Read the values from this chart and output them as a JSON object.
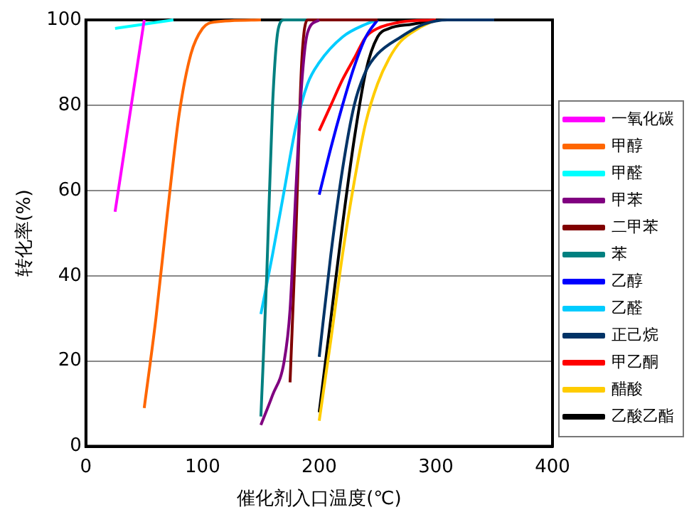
{
  "chart_data": {
    "type": "line",
    "xlabel": "催化剂入口温度(℃)",
    "ylabel": "转化率(%)",
    "xlim": [
      0,
      400
    ],
    "xticks": [
      0,
      100,
      200,
      300,
      400
    ],
    "ylim": [
      0,
      100
    ],
    "yticks": [
      0,
      20,
      40,
      60,
      80,
      100
    ],
    "grid": "y",
    "legend": "right",
    "marker": "none",
    "line_style": "solid",
    "series": [
      {
        "name": "一氧化碳",
        "color": "#ff00ff",
        "x": [
          25,
          50
        ],
        "values": [
          55,
          100
        ]
      },
      {
        "name": "甲醇",
        "color": "#ff6600",
        "x": [
          50,
          60,
          70,
          80,
          90,
          100,
          110,
          150
        ],
        "values": [
          9,
          30,
          55,
          78,
          92,
          98,
          99.5,
          100
        ]
      },
      {
        "name": "甲醛",
        "color": "#00ffff",
        "x": [
          25,
          50,
          75
        ],
        "values": [
          98,
          99,
          100
        ]
      },
      {
        "name": "甲苯",
        "color": "#800080",
        "x": [
          150,
          160,
          170,
          175,
          180,
          185,
          190,
          200
        ],
        "values": [
          5,
          12,
          20,
          32,
          60,
          85,
          97,
          100
        ]
      },
      {
        "name": "二甲苯",
        "color": "#800000",
        "x": [
          175,
          180,
          185,
          190,
          250
        ],
        "values": [
          15,
          50,
          90,
          100,
          100
        ]
      },
      {
        "name": "苯",
        "color": "#008080",
        "x": [
          150,
          155,
          160,
          165,
          170,
          250
        ],
        "values": [
          7,
          40,
          80,
          98,
          100,
          100
        ]
      },
      {
        "name": "乙醇",
        "color": "#0000ff",
        "x": [
          200,
          210,
          220,
          230,
          240,
          250
        ],
        "values": [
          59,
          70,
          80,
          89,
          96,
          100
        ]
      },
      {
        "name": "乙醛",
        "color": "#00ccff",
        "x": [
          150,
          160,
          170,
          180,
          190,
          200,
          220,
          240,
          250
        ],
        "values": [
          31,
          45,
          60,
          75,
          85,
          90,
          96,
          99,
          100
        ]
      },
      {
        "name": "正己烷",
        "color": "#003366",
        "x": [
          200,
          210,
          220,
          230,
          240,
          250,
          270,
          290,
          310,
          350
        ],
        "values": [
          21,
          45,
          65,
          80,
          88,
          92,
          96,
          99,
          100,
          100
        ]
      },
      {
        "name": "甲乙酮",
        "color": "#ff0000",
        "x": [
          200,
          210,
          220,
          230,
          240,
          250,
          270,
          300
        ],
        "values": [
          74,
          80,
          86,
          91,
          96,
          98,
          99.5,
          100
        ]
      },
      {
        "name": "醋酸",
        "color": "#ffcc00",
        "x": [
          200,
          210,
          220,
          230,
          240,
          250,
          260,
          270,
          285,
          300
        ],
        "values": [
          6,
          25,
          45,
          62,
          76,
          85,
          91,
          95,
          98,
          100
        ]
      },
      {
        "name": "乙酸乙酯",
        "color": "#000000",
        "x": [
          200,
          210,
          220,
          230,
          240,
          250,
          260,
          280,
          300
        ],
        "values": [
          8,
          30,
          52,
          72,
          88,
          96,
          98,
          99,
          100
        ]
      }
    ]
  }
}
